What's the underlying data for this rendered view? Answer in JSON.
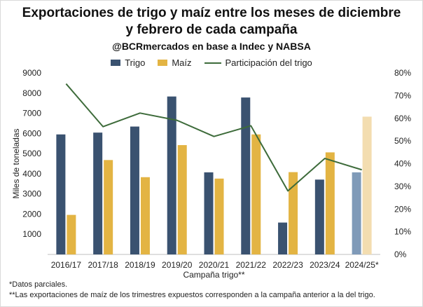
{
  "header": {
    "title_line1": "Exportaciones de trigo y maíz entre los meses de diciembre",
    "title_line2": "y febrero de cada campaña",
    "subtitle": "@BCRmercados en base a Indec y NABSA"
  },
  "chart_data": {
    "type": "bar",
    "title": "Exportaciones de trigo y maíz entre los meses de diciembre y febrero de cada campaña",
    "subtitle": "@BCRmercados en base a Indec y NABSA",
    "xlabel": "Campaña trigo**",
    "ylabel": "Miles de toneladas",
    "categories": [
      "2016/17",
      "2017/18",
      "2018/19",
      "2019/20",
      "2020/21",
      "2021/22",
      "2022/23",
      "2023/24",
      "2024/25*"
    ],
    "ylim": [
      0,
      9000
    ],
    "yticks": [
      "1000",
      "2000",
      "3000",
      "4000",
      "5000",
      "6000",
      "7000",
      "8000",
      "9000"
    ],
    "y2lim": [
      0,
      80
    ],
    "y2ticks": [
      "0%",
      "10%",
      "20%",
      "30%",
      "40%",
      "50%",
      "60%",
      "70%",
      "80%"
    ],
    "legend_position": "top",
    "grid": false,
    "series": [
      {
        "name": "Trigo",
        "kind": "bar",
        "color": "#3a5270",
        "highlight_color": "#7f9ab8",
        "values": [
          5950,
          6040,
          6340,
          7830,
          4070,
          7780,
          1580,
          3710,
          4070
        ]
      },
      {
        "name": "Maíz",
        "kind": "bar",
        "color": "#e3b443",
        "highlight_color": "#f3ddb0",
        "values": [
          1960,
          4680,
          3830,
          5420,
          3760,
          5950,
          4080,
          5060,
          6830
        ]
      },
      {
        "name": "Participación del trigo",
        "kind": "line",
        "axis": "right",
        "unit": "%",
        "color": "#3d6b3a",
        "values": [
          75.2,
          56.3,
          62.3,
          59.1,
          52.0,
          56.7,
          28.0,
          42.3,
          37.3
        ]
      }
    ]
  },
  "notes": {
    "line1": "*Datos parciales.",
    "line2": "**Las exportaciones de maíz de los trimestres expuestos corresponden a la campaña anterior a la del trigo."
  }
}
